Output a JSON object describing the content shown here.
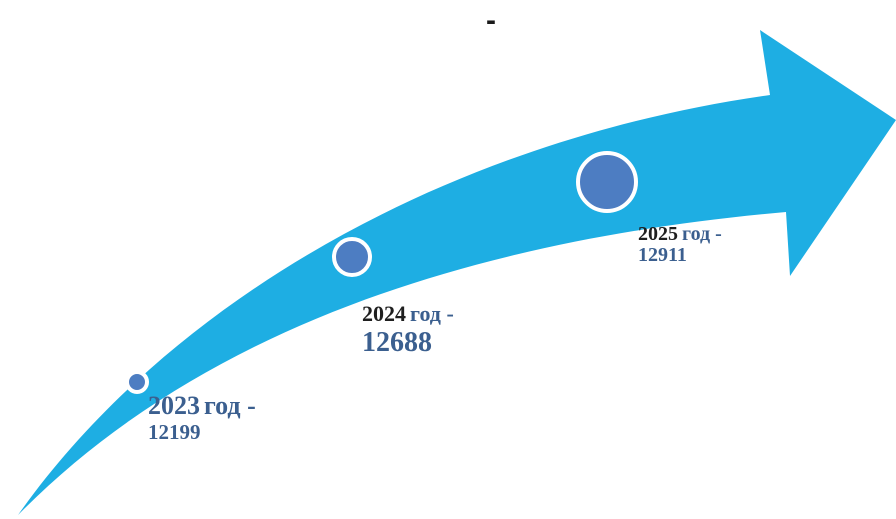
{
  "header": {
    "mark": "-"
  },
  "colors": {
    "arrow": "#1eaee3",
    "dot_fill": "#4d7dc2",
    "dot_stroke": "#ffffff",
    "label_blue": "#3b5f8f",
    "label_dark": "#1f1f1f"
  },
  "milestones": [
    {
      "year": "2023",
      "unit": "год -",
      "value": "12199"
    },
    {
      "year": "2024",
      "unit": "год -",
      "value": "12688"
    },
    {
      "year": "2025",
      "unit": "год -",
      "value": "12911"
    }
  ]
}
